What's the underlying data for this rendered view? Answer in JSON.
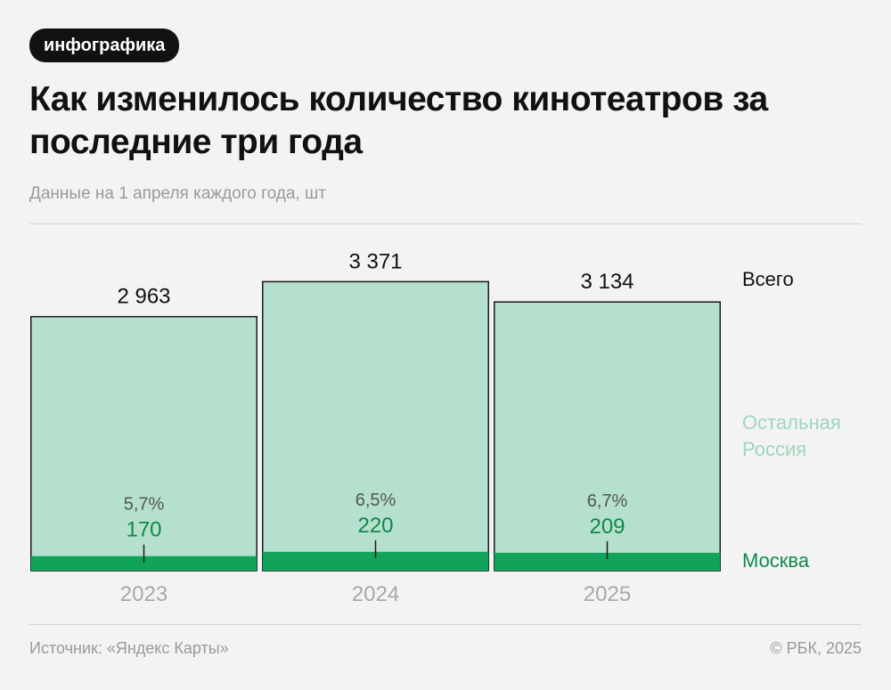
{
  "badge": "инфографика",
  "title": "Как изменилось количество кинотеатров за последние три года",
  "subtitle": "Данные на 1 апреля каждого года, шт",
  "footer": {
    "source": "Источник: «Яндекс Карты»",
    "copyright": "© РБК, 2025"
  },
  "colors": {
    "rest_fill": "#b5e0cd",
    "moscow_fill": "#12a35a",
    "moscow_text": "#0e8a4c",
    "rest_legend_text": "#9fd6bd",
    "background": "#f3f3f3"
  },
  "chart_data": {
    "type": "bar",
    "stacked": true,
    "categories": [
      "2023",
      "2024",
      "2025"
    ],
    "series": [
      {
        "name": "Москва",
        "values": [
          170,
          220,
          209
        ]
      },
      {
        "name": "Остальная Россия",
        "values": [
          2793,
          3151,
          2925
        ]
      }
    ],
    "totals": [
      2963,
      3371,
      3134
    ],
    "total_labels": [
      "2 963",
      "3 371",
      "3 134"
    ],
    "total_legend": "Всего",
    "moscow_labels": [
      "170",
      "220",
      "209"
    ],
    "moscow_share_labels": [
      "5,7%",
      "6,5%",
      "6,7%"
    ],
    "legend": [
      "Всего",
      "Остальная Россия",
      "Москва"
    ],
    "legend_placement": "right",
    "grid": false
  }
}
